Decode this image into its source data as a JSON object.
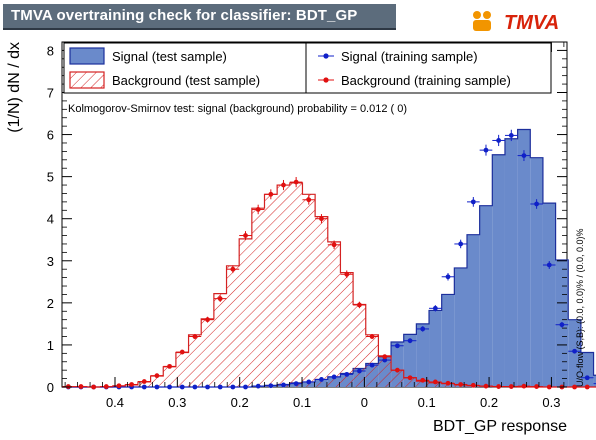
{
  "window": {
    "title": "TMVA overtraining check for classifier: BDT_GP",
    "logo_text": "TMVA"
  },
  "chart_data": {
    "type": "histogram",
    "xlabel": "BDT_GP response",
    "ylabel": "(1/N) dN / dx",
    "xlim": [
      -0.485,
      0.325
    ],
    "ylim": [
      0,
      8.2
    ],
    "x_tick_labels": [
      "0.4",
      "0.3",
      "0.2",
      "0.1",
      "0",
      "0.1",
      "0.2",
      "0.3"
    ],
    "x_tick_values": [
      -0.4,
      -0.3,
      -0.2,
      -0.1,
      0,
      0.1,
      0.2,
      0.3
    ],
    "y_ticks": [
      0,
      1,
      2,
      3,
      4,
      5,
      6,
      7,
      8
    ],
    "grid": false,
    "bin_edges_start": -0.485,
    "bin_width": 0.0203,
    "series": [
      {
        "name": "Signal (test sample)",
        "style": "filled-histogram",
        "color": "#6a8acb",
        "edge_color": "#1c2f9c",
        "values": [
          0,
          0,
          0,
          0,
          0,
          0,
          0,
          0,
          0,
          0,
          0,
          0,
          0,
          0,
          0,
          0.02,
          0.04,
          0.06,
          0.1,
          0.12,
          0.18,
          0.24,
          0.32,
          0.44,
          0.56,
          0.72,
          1.07,
          1.25,
          1.5,
          1.82,
          2.2,
          2.83,
          3.62,
          4.31,
          5.52,
          5.9,
          6.12,
          5.45,
          4.37,
          3.02,
          1.6,
          0.82,
          0.28,
          0.1
        ]
      },
      {
        "name": "Background (test sample)",
        "style": "hatched-histogram",
        "color": "#d42222",
        "values": [
          0,
          0,
          0,
          0,
          0.02,
          0.05,
          0.12,
          0.26,
          0.48,
          0.82,
          1.24,
          1.62,
          2.22,
          2.88,
          3.52,
          4.25,
          4.58,
          4.8,
          4.85,
          4.58,
          4.05,
          3.45,
          2.72,
          1.96,
          1.24,
          0.74,
          0.4,
          0.22,
          0.14,
          0.1,
          0.08,
          0.05,
          0.03,
          0.02,
          0.01,
          0.01,
          0,
          0,
          0,
          0,
          0,
          0,
          0,
          0
        ]
      },
      {
        "name": "Signal (training sample)",
        "style": "points-with-errors",
        "color": "#1020c8",
        "values": [
          0,
          0,
          0,
          0,
          0,
          0,
          0,
          0,
          0,
          0,
          0,
          0,
          0,
          0,
          0,
          0.02,
          0.03,
          0.05,
          0.08,
          0.12,
          0.18,
          0.24,
          0.3,
          0.38,
          0.52,
          0.64,
          0.98,
          1.1,
          1.38,
          1.87,
          2.62,
          3.4,
          4.4,
          5.63,
          5.86,
          5.98,
          5.5,
          4.35,
          2.9,
          1.48,
          0.85,
          0.22,
          0.08,
          0.05
        ]
      },
      {
        "name": "Background (training sample)",
        "style": "points-with-errors",
        "color": "#e01010",
        "values": [
          0.01,
          0.01,
          0,
          0.01,
          0.03,
          0.06,
          0.13,
          0.27,
          0.49,
          0.83,
          1.2,
          1.6,
          2.1,
          2.8,
          3.6,
          4.22,
          4.58,
          4.8,
          4.87,
          4.45,
          4.0,
          3.38,
          2.68,
          1.95,
          1.2,
          0.72,
          0.4,
          0.22,
          0.16,
          0.12,
          0.09,
          0.06,
          0.04,
          0.02,
          0.01,
          0.01,
          0.02,
          0.01,
          0,
          0,
          0,
          0,
          0,
          0
        ]
      }
    ],
    "ks_annotation": "Kolmogorov-Smirnov test: signal (background) probability = 0.012 (    0)",
    "side_annotation": "U/O-flow (S,B): (0.0, 0.0)% / (0.0, 0.0)%",
    "legend": [
      {
        "label": "Signal (test sample)",
        "kind": "filled-box",
        "series": 0
      },
      {
        "label": "Signal (training sample)",
        "kind": "marker",
        "series": 2
      },
      {
        "label": "Background (test sample)",
        "kind": "hatched-box",
        "series": 1
      },
      {
        "label": "Background (training sample)",
        "kind": "marker",
        "series": 3
      }
    ]
  }
}
